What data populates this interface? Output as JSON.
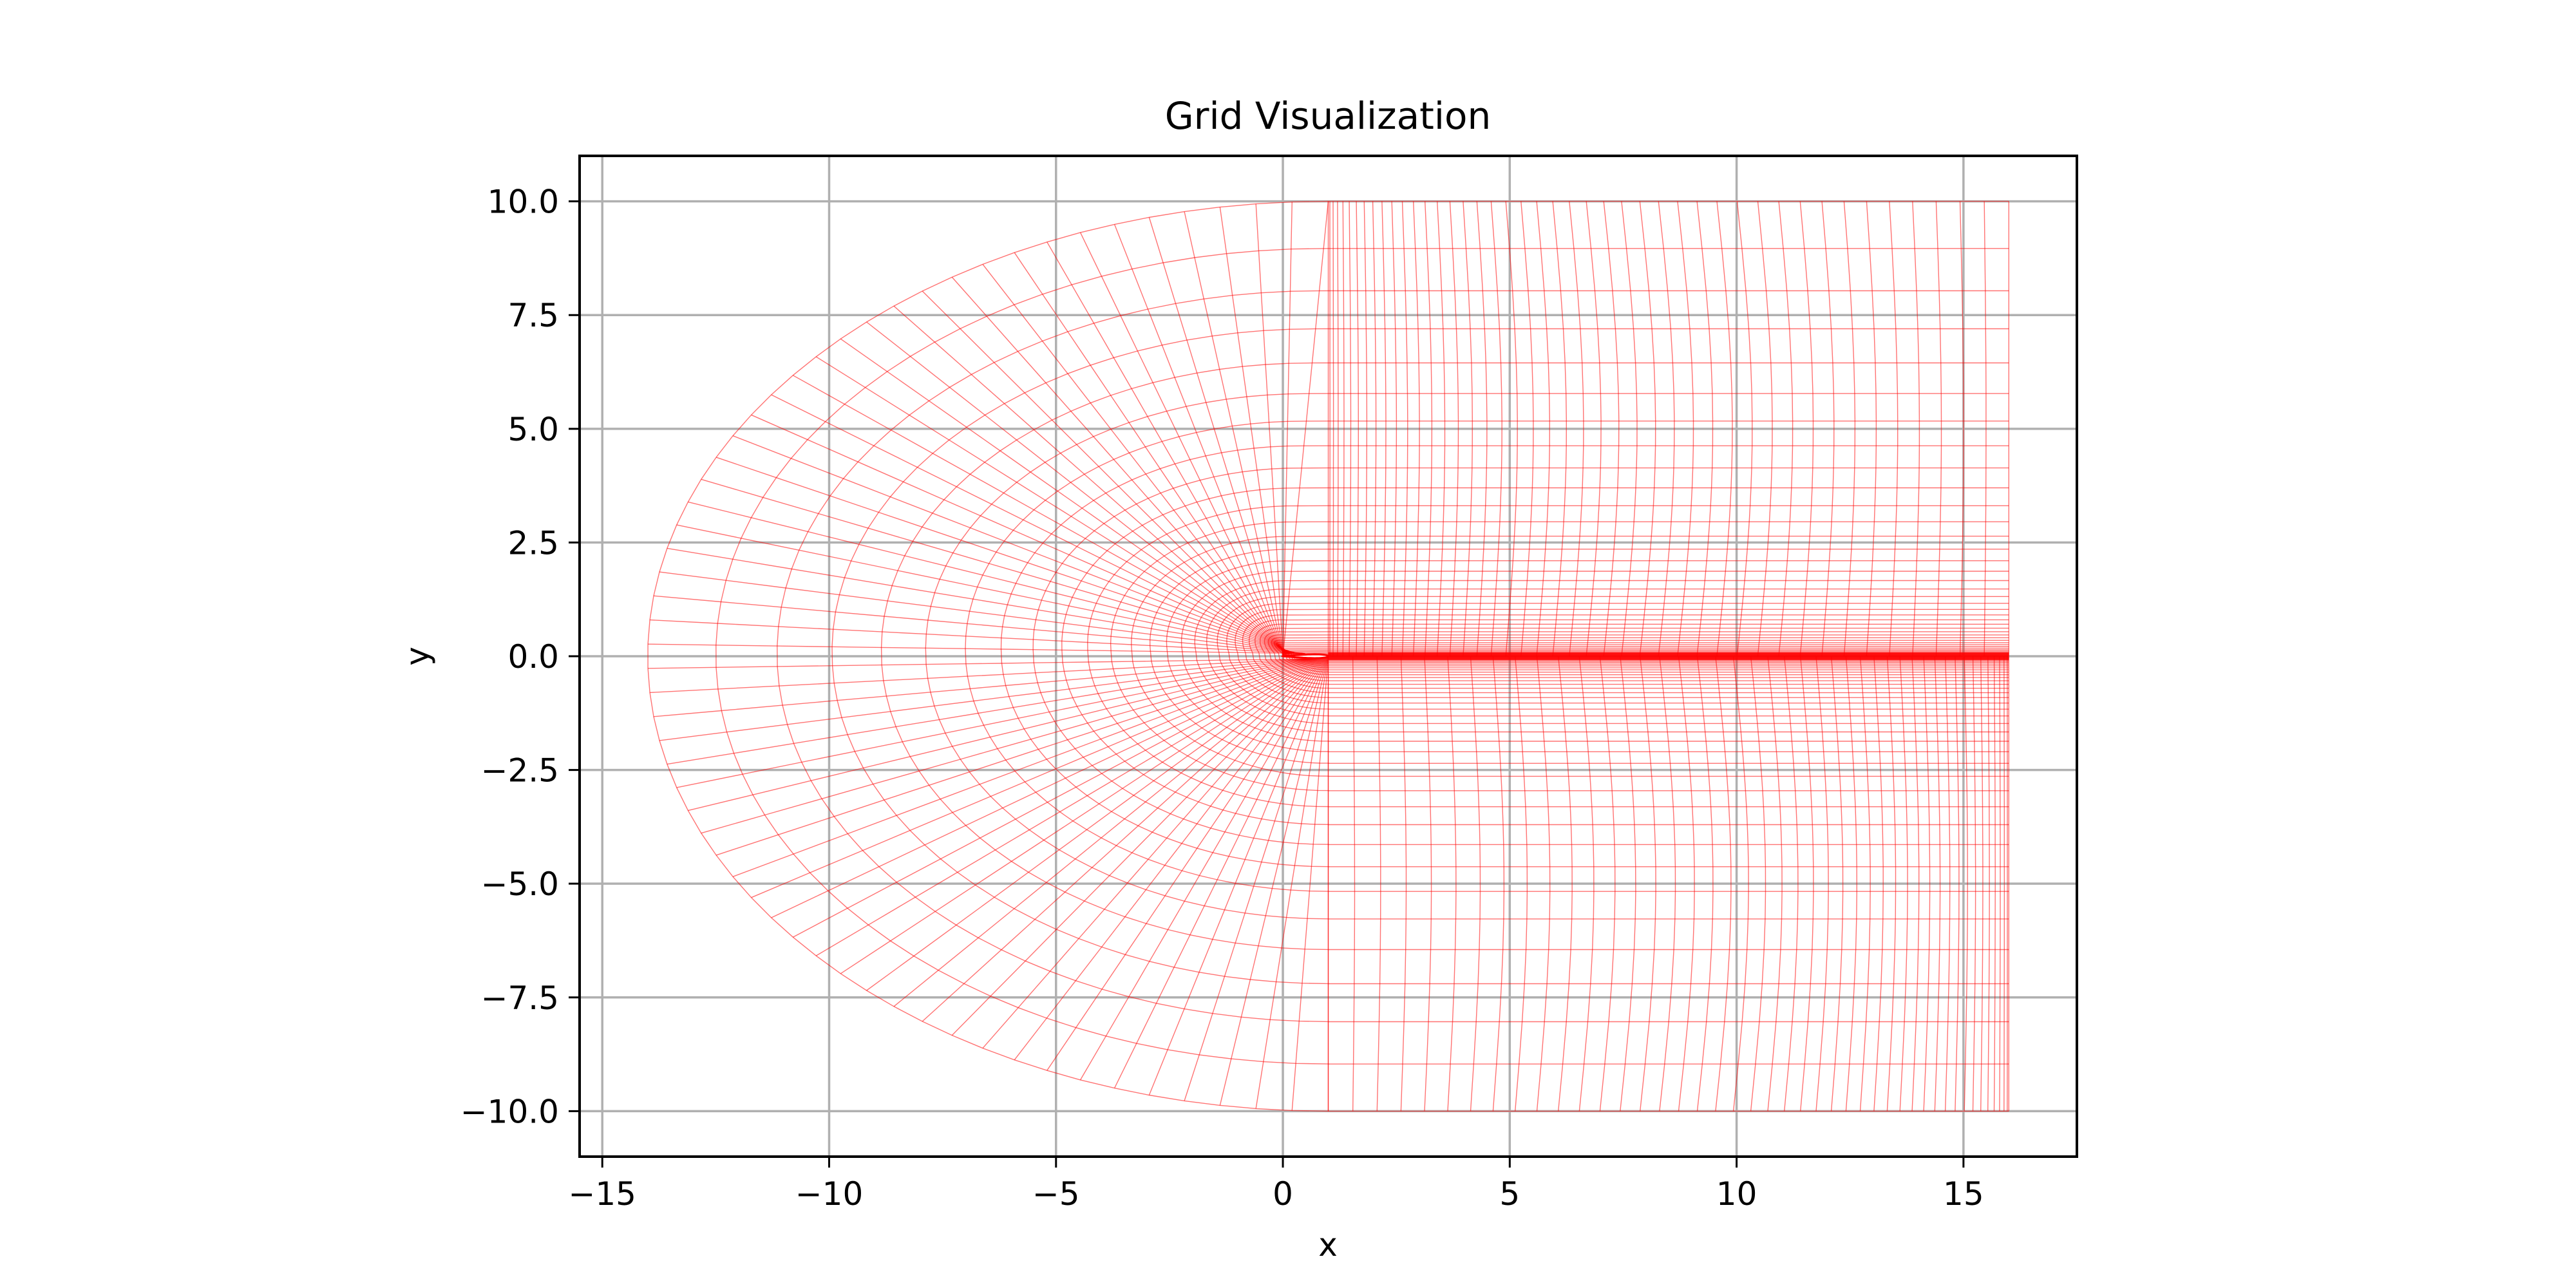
{
  "chart_data": {
    "type": "line",
    "title": "Grid Visualization",
    "xlabel": "x",
    "ylabel": "y",
    "xlim": [
      -15.5,
      17.5
    ],
    "ylim": [
      -11.0,
      11.0
    ],
    "xticks": [
      -15,
      -10,
      -5,
      0,
      5,
      10,
      15
    ],
    "xtick_labels": [
      "−15",
      "−10",
      "−5",
      "0",
      "5",
      "10",
      "15"
    ],
    "yticks": [
      10.0,
      7.5,
      5.0,
      2.5,
      0.0,
      -2.5,
      -5.0,
      -7.5,
      -10.0
    ],
    "ytick_labels": [
      "10.0",
      "7.5",
      "5.0",
      "2.5",
      "0.0",
      "−2.5",
      "−5.0",
      "−7.5",
      "−10.0"
    ],
    "grid": true,
    "line_color": "#ff0000",
    "grid_color": "#b0b0b0",
    "mesh": {
      "description_type": "C-grid around airfoil",
      "farfield_x_left": -14.0,
      "outflow_x": 16.0,
      "y_extent": 10.0,
      "airfoil_chord": [
        0.0,
        1.0
      ],
      "wrap_lines": 60,
      "wake_lines": 45,
      "normal_layers": 40
    }
  }
}
